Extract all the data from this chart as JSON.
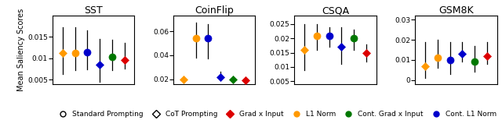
{
  "titles": [
    "SST",
    "CoinFlip",
    "CSQA",
    "GSM8K"
  ],
  "ylabel": "Mean Saliency Scores",
  "datasets": {
    "SST": {
      "centers": [
        0.0113,
        0.0113,
        0.0115,
        0.0085,
        0.0103,
        0.0097
      ],
      "errors_lo": [
        0.0045,
        0.0045,
        0.005,
        0.004,
        0.003,
        0.003
      ],
      "errors_hi": [
        0.006,
        0.006,
        0.006,
        0.006,
        0.004,
        0.004
      ],
      "ylim": [
        0.004,
        0.02
      ],
      "yticks": [
        0.005,
        0.01,
        0.015
      ]
    },
    "CoinFlip": {
      "centers": [
        0.02,
        0.053,
        0.022,
        0.053,
        0.02,
        0.02
      ],
      "errors_lo": [
        0.001,
        0.015,
        0.002,
        0.015,
        0.002,
        0.002
      ],
      "errors_hi": [
        0.002,
        0.012,
        0.004,
        0.013,
        0.002,
        0.002
      ],
      "ylim": [
        0.016,
        0.073
      ],
      "yticks": [
        0.02,
        0.04,
        0.06
      ]
    },
    "CSQA": {
      "centers": [
        0.016,
        0.021,
        0.019,
        0.017,
        0.02,
        0.015
      ],
      "errors_lo": [
        0.007,
        0.006,
        0.005,
        0.004,
        0.004,
        0.003
      ],
      "errors_hi": [
        0.009,
        0.004,
        0.003,
        0.007,
        0.003,
        0.003
      ],
      "ylim": [
        0.004,
        0.028
      ],
      "yticks": [
        0.005,
        0.01,
        0.015,
        0.02,
        0.025
      ]
    },
    "GSM8K": {
      "centers": [
        0.007,
        0.011,
        0.01,
        0.013,
        0.009,
        0.012
      ],
      "errors_lo": [
        0.006,
        0.006,
        0.005,
        0.004,
        0.004,
        0.004
      ],
      "errors_hi": [
        0.012,
        0.008,
        0.009,
        0.006,
        0.008,
        0.007
      ],
      "ylim": [
        -0.002,
        0.032
      ],
      "yticks": [
        0.0,
        0.01,
        0.02,
        0.03
      ]
    }
  },
  "methods_order": [
    "l1_norm",
    "l1_norm_cot",
    "cont_l1",
    "cont_l1_cot",
    "cont_grad",
    "grad_input"
  ],
  "marker_styles": {
    "l1_norm": {
      "marker": "D",
      "mfc": "#ff9900",
      "mec": "#ff9900",
      "ms": 5.5
    },
    "l1_norm_cot": {
      "marker": "o",
      "mfc": "#ff9900",
      "mec": "#ff9900",
      "ms": 6
    },
    "cont_l1": {
      "marker": "o",
      "mfc": "#0000cc",
      "mec": "#0000cc",
      "ms": 6
    },
    "cont_l1_cot": {
      "marker": "D",
      "mfc": "#0000cc",
      "mec": "#0000cc",
      "ms": 5.5
    },
    "cont_grad": {
      "marker": "o",
      "mfc": "#007700",
      "mec": "#007700",
      "ms": 6
    },
    "grad_input": {
      "marker": "D",
      "mfc": "#dd0000",
      "mec": "#dd0000",
      "ms": 5.5
    }
  },
  "legend": {
    "labels": [
      "Standard Prompting",
      "CoT Prompting",
      "Grad x Input",
      "L1 Norm",
      "Cont. Grad x Input",
      "Cont. L1 Norm"
    ],
    "markers": [
      "o",
      "D",
      "D",
      "o",
      "o",
      "o"
    ],
    "mfc": [
      "none",
      "none",
      "#dd0000",
      "#ff9900",
      "#007700",
      "#0000cc"
    ],
    "mec": [
      "black",
      "black",
      "#dd0000",
      "#ff9900",
      "#007700",
      "#0000cc"
    ]
  }
}
